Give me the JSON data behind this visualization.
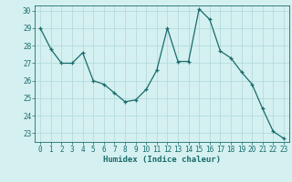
{
  "x": [
    0,
    1,
    2,
    3,
    4,
    5,
    6,
    7,
    8,
    9,
    10,
    11,
    12,
    13,
    14,
    15,
    16,
    17,
    18,
    19,
    20,
    21,
    22,
    23
  ],
  "y": [
    29.0,
    27.8,
    27.0,
    27.0,
    27.6,
    26.0,
    25.8,
    25.3,
    24.8,
    24.9,
    25.5,
    26.6,
    29.0,
    27.1,
    27.1,
    30.1,
    29.5,
    27.7,
    27.3,
    26.5,
    25.8,
    24.4,
    23.1,
    22.7
  ],
  "xlabel": "Humidex (Indice chaleur)",
  "ylim": [
    22.5,
    30.3
  ],
  "xlim": [
    -0.5,
    23.5
  ],
  "yticks": [
    23,
    24,
    25,
    26,
    27,
    28,
    29,
    30
  ],
  "xticks": [
    0,
    1,
    2,
    3,
    4,
    5,
    6,
    7,
    8,
    9,
    10,
    11,
    12,
    13,
    14,
    15,
    16,
    17,
    18,
    19,
    20,
    21,
    22,
    23
  ],
  "line_color": "#1a6b6b",
  "marker_color": "#1a6b6b",
  "bg_color": "#d4f0f0",
  "grid_color": "#b0d8d8",
  "axis_label_color": "#1a6b6b",
  "tick_color": "#1a6b6b"
}
